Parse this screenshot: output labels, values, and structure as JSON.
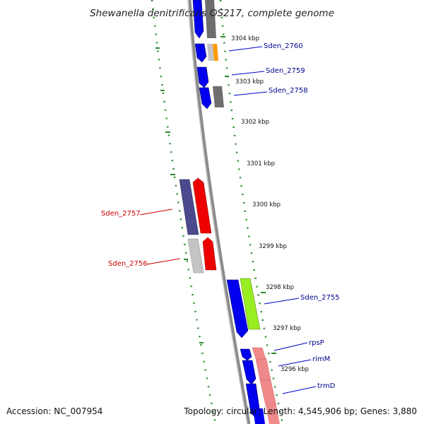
{
  "title": "Shewanella denitrificans OS217, complete genome",
  "footer": {
    "accession": "Accession: NC_007954",
    "topology": "Topology: circular; Length: 4,545,906 bp; Genes: 3,880"
  },
  "ticks": [
    "3304 kbp",
    "3303 kbp",
    "3302 kbp",
    "3301 kbp",
    "3300 kbp",
    "3299 kbp",
    "3298 kbp",
    "3297 kbp",
    "3296 kbp"
  ],
  "gene_labels": {
    "sden_2760": "Sden_2760",
    "sden_2759": "Sden_2759",
    "sden_2758": "Sden_2758",
    "sden_2757": "Sden_2757",
    "sden_2756": "Sden_2756",
    "sden_2755": "Sden_2755",
    "rpsP": "rpsP",
    "rimM": "rimM",
    "trmD": "trmD"
  },
  "colors": {
    "forward_label": "#00008b",
    "reverse_label": "#cc0000",
    "blue": "#0000ee",
    "red": "#ee0000",
    "slate": "#4a4a8c",
    "grey": "#6e6e6e",
    "light_grey": "#c4c4c4",
    "orange": "#ff9900",
    "lime": "#99ee22",
    "salmon": "#f08a8a",
    "gc_green": "#2e8b2e"
  }
}
